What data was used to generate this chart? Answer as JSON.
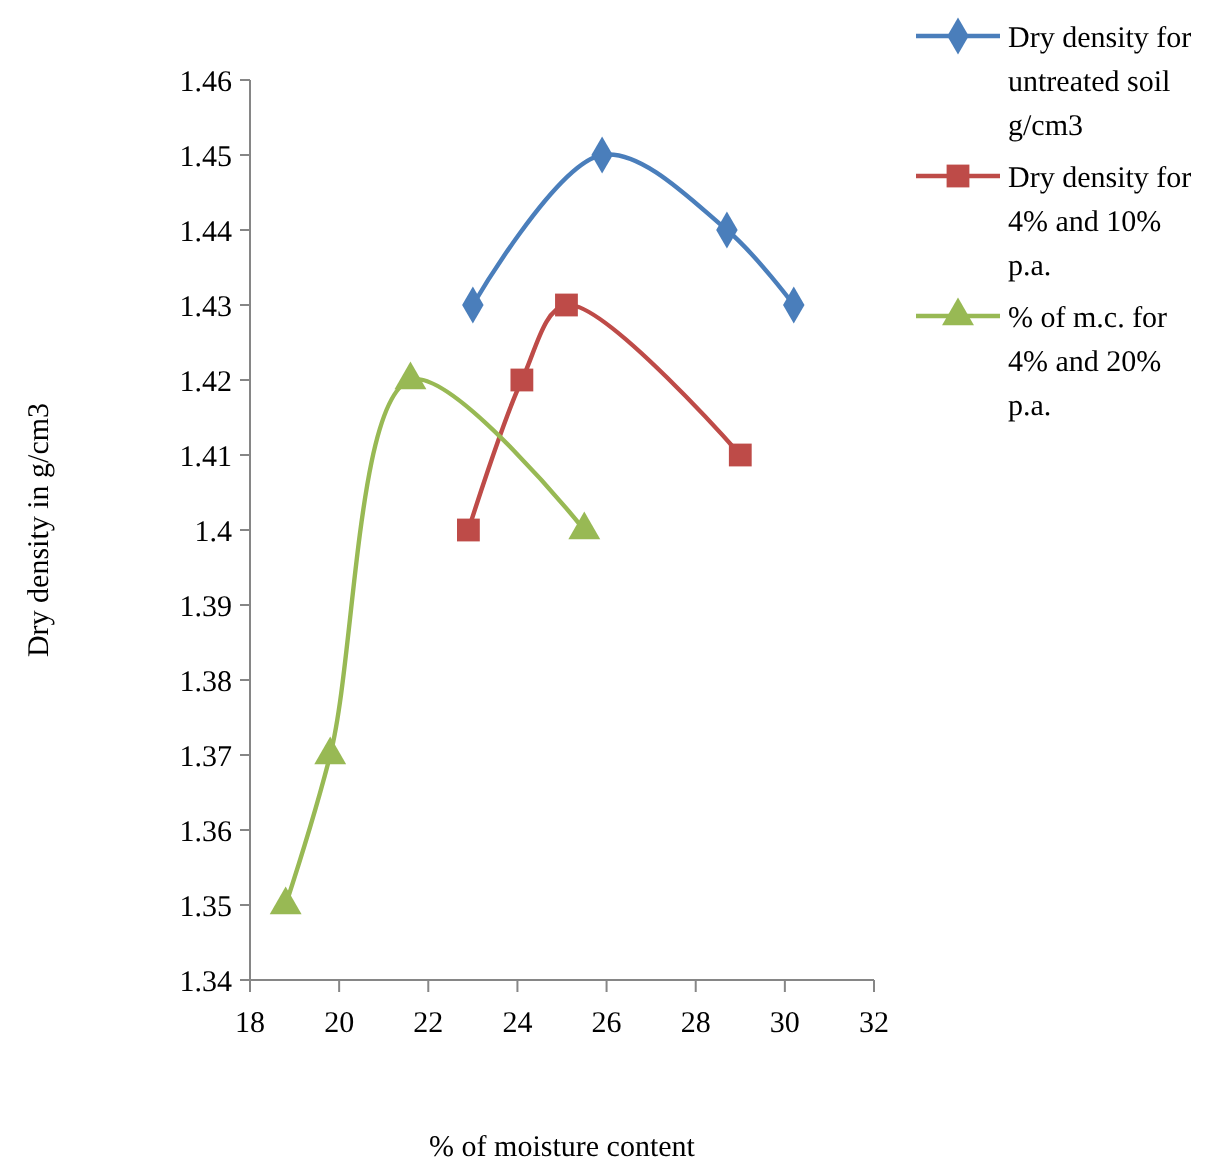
{
  "chart_data": {
    "type": "line",
    "xlabel": "%  of moisture content",
    "ylabel": "Dry density in g/cm3",
    "xlim": [
      18,
      32
    ],
    "xticks": [
      18,
      20,
      22,
      24,
      26,
      28,
      30,
      32
    ],
    "ylim": [
      1.34,
      1.46
    ],
    "yticks": [
      {
        "value": 1.34,
        "label": "1.34"
      },
      {
        "value": 1.35,
        "label": "1.35"
      },
      {
        "value": 1.36,
        "label": "1.36"
      },
      {
        "value": 1.37,
        "label": "1.37"
      },
      {
        "value": 1.38,
        "label": "1.38"
      },
      {
        "value": 1.39,
        "label": "1.39"
      },
      {
        "value": 1.4,
        "label": "1.4"
      },
      {
        "value": 1.41,
        "label": "1.41"
      },
      {
        "value": 1.42,
        "label": "1.42"
      },
      {
        "value": 1.43,
        "label": "1.43"
      },
      {
        "value": 1.44,
        "label": "1.44"
      },
      {
        "value": 1.45,
        "label": "1.45"
      },
      {
        "value": 1.46,
        "label": "1.46"
      }
    ],
    "grid": false,
    "legend": "top right",
    "line_style": "solid",
    "series": [
      {
        "name": "Dry density for untreated soil g/cm3",
        "color": "#4a7ebb",
        "marker": "diamond",
        "x": [
          23,
          25.9,
          28.7,
          30.2
        ],
        "values": [
          1.43,
          1.45,
          1.44,
          1.43
        ]
      },
      {
        "name": "Dry density for 4% and 10% p.a.",
        "color": "#be4b48",
        "marker": "square",
        "x": [
          22.9,
          24.1,
          25.1,
          29
        ],
        "values": [
          1.4,
          1.42,
          1.43,
          1.41
        ]
      },
      {
        "name": "% of m.c. for 4% and 20% p.a.",
        "color": "#98b954",
        "marker": "triangle",
        "x": [
          18.8,
          19.8,
          21.6,
          25.5
        ],
        "values": [
          1.35,
          1.37,
          1.42,
          1.4
        ]
      }
    ]
  }
}
